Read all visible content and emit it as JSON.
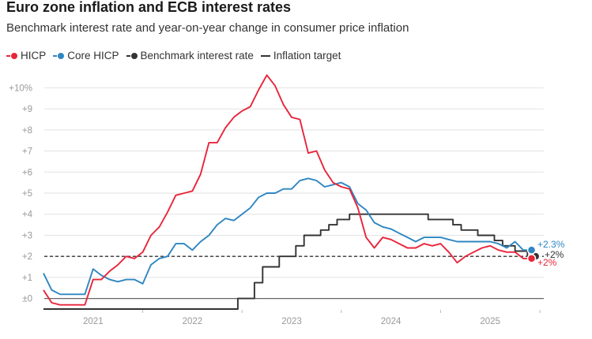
{
  "header": {
    "title": "Euro zone inflation and ECB interest rates",
    "subtitle": "Benchmark interest rate and year-on-year change in consumer price inflation"
  },
  "legend": [
    {
      "key": "hicp",
      "label": "HICP",
      "color": "#e8253b"
    },
    {
      "key": "core",
      "label": "Core HICP",
      "color": "#2f86c2"
    },
    {
      "key": "rate",
      "label": "Benchmark interest rate",
      "color": "#333333"
    },
    {
      "key": "target",
      "label": "Inflation target",
      "color": "#333333"
    }
  ],
  "chart_data": {
    "type": "line",
    "title": "Euro zone inflation and ECB interest rates",
    "ylim": [
      -0.5,
      10.5
    ],
    "xlim": [
      2020.46,
      2025.54
    ],
    "y_ticks": [
      0,
      1,
      2,
      3,
      4,
      5,
      6,
      7,
      8,
      9,
      10
    ],
    "y_tick_labels": [
      "±0",
      "+1",
      "+2",
      "+3",
      "+4",
      "+5",
      "+6",
      "+7",
      "+8",
      "+9",
      "+10%"
    ],
    "x_ticks": [
      2021,
      2022,
      2023,
      2024,
      2025
    ],
    "x_tick_labels": [
      "2021",
      "2022",
      "2023",
      "2024",
      "2025"
    ],
    "target": 2,
    "series": [
      {
        "name": "HICP",
        "color": "#e8253b",
        "step": false,
        "end_label": "+2%",
        "x": [
          2020.5,
          2020.583,
          2020.667,
          2020.75,
          2020.833,
          2020.917,
          2021.0,
          2021.083,
          2021.167,
          2021.25,
          2021.333,
          2021.417,
          2021.5,
          2021.583,
          2021.667,
          2021.75,
          2021.833,
          2021.917,
          2022.0,
          2022.083,
          2022.167,
          2022.25,
          2022.333,
          2022.417,
          2022.5,
          2022.583,
          2022.667,
          2022.75,
          2022.833,
          2022.917,
          2023.0,
          2023.083,
          2023.167,
          2023.25,
          2023.333,
          2023.417,
          2023.5,
          2023.583,
          2023.667,
          2023.75,
          2023.833,
          2023.917,
          2024.0,
          2024.083,
          2024.167,
          2024.25,
          2024.333,
          2024.417,
          2024.5,
          2024.583,
          2024.667,
          2024.75,
          2024.833,
          2024.917,
          2025.0,
          2025.083,
          2025.167,
          2025.25,
          2025.333,
          2025.417
        ],
        "values": [
          0.4,
          -0.2,
          -0.3,
          -0.3,
          -0.3,
          -0.3,
          0.9,
          0.9,
          1.3,
          1.6,
          2.0,
          1.9,
          2.2,
          3.0,
          3.4,
          4.1,
          4.9,
          5.0,
          5.1,
          5.9,
          7.4,
          7.4,
          8.1,
          8.6,
          8.9,
          9.1,
          9.9,
          10.6,
          10.1,
          9.2,
          8.6,
          8.5,
          6.9,
          7.0,
          6.1,
          5.5,
          5.3,
          5.2,
          4.3,
          2.9,
          2.4,
          2.9,
          2.8,
          2.6,
          2.4,
          2.4,
          2.6,
          2.5,
          2.6,
          2.2,
          1.7,
          2.0,
          2.2,
          2.4,
          2.5,
          2.3,
          2.2,
          2.2,
          1.9,
          1.9
        ]
      },
      {
        "name": "Core HICP",
        "color": "#2f86c2",
        "step": false,
        "end_label": "+2.3%",
        "x": [
          2020.5,
          2020.583,
          2020.667,
          2020.75,
          2020.833,
          2020.917,
          2021.0,
          2021.083,
          2021.167,
          2021.25,
          2021.333,
          2021.417,
          2021.5,
          2021.583,
          2021.667,
          2021.75,
          2021.833,
          2021.917,
          2022.0,
          2022.083,
          2022.167,
          2022.25,
          2022.333,
          2022.417,
          2022.5,
          2022.583,
          2022.667,
          2022.75,
          2022.833,
          2022.917,
          2023.0,
          2023.083,
          2023.167,
          2023.25,
          2023.333,
          2023.417,
          2023.5,
          2023.583,
          2023.667,
          2023.75,
          2023.833,
          2023.917,
          2024.0,
          2024.083,
          2024.167,
          2024.25,
          2024.333,
          2024.417,
          2024.5,
          2024.583,
          2024.667,
          2024.75,
          2024.833,
          2024.917,
          2025.0,
          2025.083,
          2025.167,
          2025.25,
          2025.333,
          2025.417
        ],
        "values": [
          1.2,
          0.4,
          0.2,
          0.2,
          0.2,
          0.2,
          1.4,
          1.1,
          0.9,
          0.8,
          0.9,
          0.9,
          0.7,
          1.6,
          1.9,
          2.0,
          2.6,
          2.6,
          2.3,
          2.7,
          3.0,
          3.5,
          3.8,
          3.7,
          4.0,
          4.3,
          4.8,
          5.0,
          5.0,
          5.2,
          5.2,
          5.6,
          5.7,
          5.6,
          5.3,
          5.4,
          5.5,
          5.3,
          4.5,
          4.2,
          3.6,
          3.4,
          3.3,
          3.1,
          2.9,
          2.7,
          2.9,
          2.9,
          2.9,
          2.8,
          2.7,
          2.7,
          2.7,
          2.7,
          2.7,
          2.6,
          2.4,
          2.7,
          2.3,
          2.3
        ]
      },
      {
        "name": "Benchmark interest rate",
        "color": "#333333",
        "step": true,
        "end_label": "+2%",
        "x": [
          2020.5,
          2022.458,
          2022.625,
          2022.708,
          2022.875,
          2023.042,
          2023.125,
          2023.292,
          2023.375,
          2023.458,
          2023.583,
          2023.75,
          2024.375,
          2024.625,
          2024.708,
          2024.875,
          2025.042,
          2025.125,
          2025.25,
          2025.375,
          2025.458
        ],
        "values": [
          -0.5,
          0,
          0.75,
          1.5,
          2.0,
          2.5,
          3.0,
          3.25,
          3.5,
          3.75,
          4.0,
          4.0,
          3.75,
          3.5,
          3.25,
          3.0,
          2.75,
          2.5,
          2.25,
          2.0,
          2.0
        ]
      }
    ]
  }
}
